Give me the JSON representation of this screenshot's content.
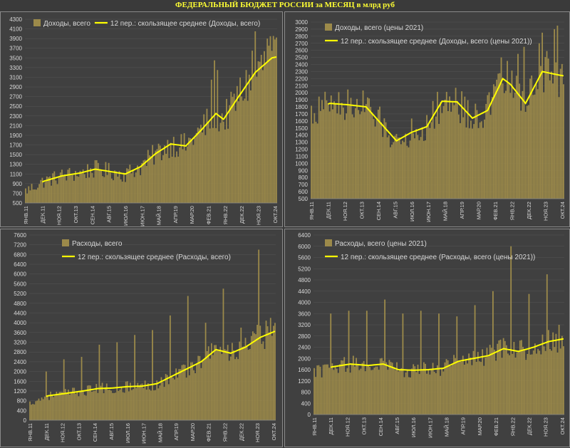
{
  "title": "ФЕДЕРАЛЬНЫЙ БЮДЖЕТ РОССИИ за МЕСЯЦ в млрд руб",
  "colors": {
    "bar": "#9c8a4a",
    "line": "#ffff00",
    "text": "#d8d8d8",
    "grid": "#555555",
    "title": "#ffff33"
  },
  "x_ticks": [
    "ЯНВ.11",
    "ДЕК.11",
    "НОЯ.12",
    "ОКТ.13",
    "СЕН.14",
    "АВГ.15",
    "ИЮЛ.16",
    "ИЮН.17",
    "МАЙ.18",
    "АПР.19",
    "МАР.20",
    "ФЕВ.21",
    "ЯНВ.22",
    "ДЕК.22",
    "НОЯ.23",
    "ОКТ.24"
  ],
  "chart_data": [
    {
      "type": "bar",
      "panel": "top-left",
      "legend": {
        "bar": "Доходы, всего",
        "line": "12 пер.: скользящее среднее (Доходы, всего)"
      },
      "ylim": [
        500,
        4300
      ],
      "ystep": 200,
      "key_points": [
        [
          0,
          750
        ],
        [
          12,
          950
        ],
        [
          24,
          1060
        ],
        [
          36,
          1120
        ],
        [
          46,
          1200
        ],
        [
          56,
          1150
        ],
        [
          66,
          1100
        ],
        [
          76,
          1250
        ],
        [
          86,
          1520
        ],
        [
          96,
          1720
        ],
        [
          106,
          1680
        ],
        [
          116,
          2000
        ],
        [
          126,
          2350
        ],
        [
          131,
          2230
        ],
        [
          141,
          2700
        ],
        [
          152,
          3200
        ],
        [
          163,
          3500
        ],
        [
          166,
          3520
        ]
      ],
      "ma_start": 11,
      "bar_noise": 0.16,
      "spikes": [
        [
          123,
          3050
        ],
        [
          125,
          3450
        ],
        [
          127,
          3250
        ],
        [
          136,
          2800
        ],
        [
          150,
          3650
        ],
        [
          152,
          4050
        ],
        [
          160,
          3900
        ],
        [
          162,
          3950
        ]
      ]
    },
    {
      "type": "bar",
      "panel": "top-right",
      "legend": {
        "bar": "Доходы, всего (цены 2021)",
        "line": "12 пер.: скользящее среднее (Доходы, всего (цены 2021))"
      },
      "ylim": [
        500,
        3000
      ],
      "ystep": 100,
      "key_points": [
        [
          0,
          1700
        ],
        [
          12,
          1850
        ],
        [
          24,
          1830
        ],
        [
          36,
          1800
        ],
        [
          46,
          1560
        ],
        [
          56,
          1320
        ],
        [
          66,
          1440
        ],
        [
          76,
          1520
        ],
        [
          86,
          1880
        ],
        [
          96,
          1870
        ],
        [
          106,
          1640
        ],
        [
          116,
          1750
        ],
        [
          126,
          2200
        ],
        [
          131,
          2120
        ],
        [
          141,
          1850
        ],
        [
          152,
          2300
        ],
        [
          163,
          2250
        ],
        [
          166,
          2240
        ]
      ],
      "ma_start": 11,
      "bar_noise": 0.14,
      "spikes": [
        [
          125,
          2500
        ],
        [
          136,
          2550
        ],
        [
          140,
          2650
        ],
        [
          150,
          2700
        ],
        [
          152,
          2850
        ],
        [
          160,
          2900
        ],
        [
          162,
          2950
        ]
      ]
    },
    {
      "type": "bar",
      "panel": "bottom-left",
      "legend": {
        "bar": "Расходы, всего",
        "line": "12 пер.: скользящее среднее (Расходы, всего)"
      },
      "ylim": [
        0,
        7600
      ],
      "ystep": 400,
      "key_points": [
        [
          0,
          700
        ],
        [
          12,
          1000
        ],
        [
          24,
          1100
        ],
        [
          36,
          1200
        ],
        [
          46,
          1300
        ],
        [
          56,
          1320
        ],
        [
          66,
          1380
        ],
        [
          76,
          1400
        ],
        [
          86,
          1500
        ],
        [
          96,
          1800
        ],
        [
          106,
          2100
        ],
        [
          116,
          2400
        ],
        [
          126,
          2900
        ],
        [
          136,
          2750
        ],
        [
          146,
          3000
        ],
        [
          156,
          3400
        ],
        [
          166,
          3650
        ]
      ],
      "ma_start": 11,
      "bar_noise": 0.18,
      "spikes": [
        [
          11,
          2000
        ],
        [
          23,
          2500
        ],
        [
          35,
          2600
        ],
        [
          47,
          3100
        ],
        [
          59,
          3200
        ],
        [
          71,
          3500
        ],
        [
          83,
          3700
        ],
        [
          95,
          4300
        ],
        [
          107,
          5100
        ],
        [
          119,
          4000
        ],
        [
          131,
          5400
        ],
        [
          143,
          3800
        ],
        [
          155,
          7000
        ],
        [
          163,
          4200
        ]
      ]
    },
    {
      "type": "bar",
      "panel": "bottom-right",
      "legend": {
        "bar": "Расходы, всего (цены 2021)",
        "line": "12 пер.: скользящее среднее (Расходы, всего (цены 2021))"
      },
      "ylim": [
        0,
        6400
      ],
      "ystep": 400,
      "key_points": [
        [
          0,
          1500
        ],
        [
          12,
          1700
        ],
        [
          24,
          1800
        ],
        [
          36,
          1750
        ],
        [
          46,
          1800
        ],
        [
          56,
          1600
        ],
        [
          66,
          1580
        ],
        [
          76,
          1600
        ],
        [
          86,
          1650
        ],
        [
          96,
          1900
        ],
        [
          106,
          2000
        ],
        [
          116,
          2100
        ],
        [
          126,
          2350
        ],
        [
          136,
          2250
        ],
        [
          146,
          2400
        ],
        [
          156,
          2600
        ],
        [
          166,
          2700
        ]
      ],
      "ma_start": 11,
      "bar_noise": 0.17,
      "spikes": [
        [
          11,
          3600
        ],
        [
          23,
          3700
        ],
        [
          35,
          3700
        ],
        [
          47,
          4100
        ],
        [
          59,
          3600
        ],
        [
          71,
          3700
        ],
        [
          83,
          3600
        ],
        [
          95,
          3500
        ],
        [
          107,
          3900
        ],
        [
          119,
          4400
        ],
        [
          131,
          6000
        ],
        [
          143,
          4300
        ],
        [
          155,
          5000
        ],
        [
          163,
          3200
        ]
      ]
    }
  ]
}
